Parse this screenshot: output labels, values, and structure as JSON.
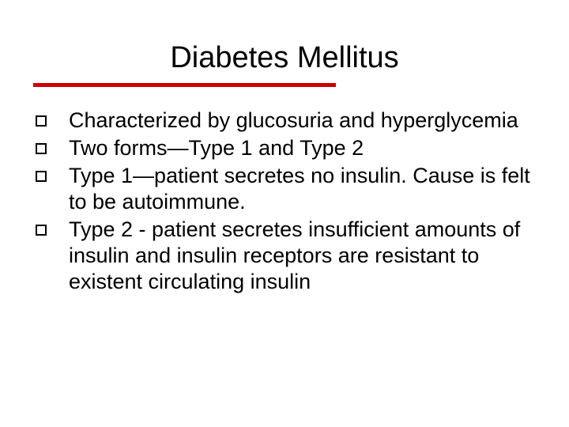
{
  "slide": {
    "title": "Diabetes Mellitus",
    "title_fontsize": 38,
    "title_color": "#000000",
    "underline_color": "#cc0000",
    "underline_height": 5,
    "background_color": "#ffffff",
    "body_fontsize": 27,
    "body_color": "#000000",
    "bullet_style": "hollow-square",
    "bullet_border_color": "#000000",
    "bullets": [
      {
        "text": "Characterized by glucosuria and hyperglycemia"
      },
      {
        "text": "Two forms—Type 1 and Type 2"
      },
      {
        "text": "Type 1—patient secretes no insulin. Cause is felt to be autoimmune."
      },
      {
        "text": "Type 2 - patient secretes insufficient amounts of insulin and insulin receptors are resistant to existent circulating insulin"
      }
    ]
  }
}
